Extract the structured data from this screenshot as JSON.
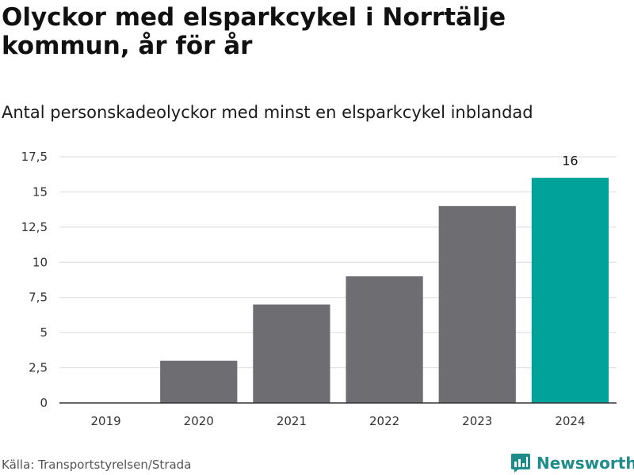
{
  "header": {
    "title": "Olyckor med elsparkcykel i Norrtälje kommun, år för år",
    "subtitle": "Antal personskadeolyckor med minst en elsparkcykel inblandad"
  },
  "footer": {
    "source": "Källa: Transportstyrelsen/Strada",
    "logo_text": "Newsworthy",
    "logo_icon": "bar-chart-icon"
  },
  "colors": {
    "bar_default": "#6e6d72",
    "bar_highlight": "#00a29a",
    "gridline": "#d9d9d9",
    "axis": "#333333",
    "brand": "#1f8c8c"
  },
  "chart_data": {
    "type": "bar",
    "categories": [
      "2019",
      "2020",
      "2021",
      "2022",
      "2023",
      "2024"
    ],
    "values": [
      0,
      3,
      7,
      9,
      14,
      16
    ],
    "highlight_index": 5,
    "data_labels": [
      {
        "index": 5,
        "text": "16"
      }
    ],
    "ylim": [
      0,
      17.5
    ],
    "yticks": [
      0,
      2.5,
      5,
      7.5,
      10,
      12.5,
      15,
      17.5
    ],
    "ytick_labels": [
      "0",
      "2,5",
      "5",
      "7,5",
      "10",
      "12,5",
      "15",
      "17,5"
    ],
    "grid": true,
    "legend": "none",
    "xlabel": "",
    "ylabel": ""
  }
}
